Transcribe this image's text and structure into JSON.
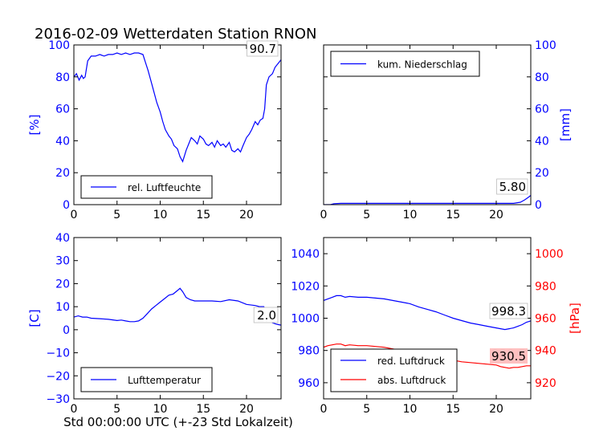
{
  "title": "2016-02-09 Wetterdaten Station RNON",
  "xlabel": "Std 00:00:00 UTC (+-23 Std Lokalzeit)",
  "colors": {
    "primary": "#0000ff",
    "secondary": "#ff0000",
    "axis": "#000000",
    "label_bg": "#ffc0c0"
  },
  "chart_data": [
    {
      "type": "line",
      "name": "humidity",
      "xlim": [
        0,
        24
      ],
      "xticks": [
        0,
        5,
        10,
        15,
        20
      ],
      "ylim": [
        0,
        100
      ],
      "yticks": [
        0,
        20,
        40,
        60,
        80,
        100
      ],
      "ylabel": "[%]",
      "yaxis_side": "left",
      "legend": {
        "placement": "lower-left",
        "entries": [
          {
            "label": "rel. Luftfeuchte",
            "color": "#0000ff"
          }
        ]
      },
      "value_label": {
        "text": "90.7",
        "highlight": false
      },
      "series": [
        {
          "name": "rel. Luftfeuchte",
          "color": "#0000ff",
          "x": [
            0,
            0.3,
            0.6,
            0.9,
            1.1,
            1.3,
            1.6,
            2,
            2.5,
            3,
            3.5,
            4,
            4.5,
            5,
            5.5,
            6,
            6.5,
            7,
            7.5,
            8,
            8.3,
            8.6,
            9,
            9.3,
            9.6,
            10,
            10.3,
            10.6,
            11,
            11.3,
            11.6,
            12,
            12.3,
            12.6,
            13,
            13.3,
            13.6,
            14,
            14.3,
            14.6,
            15,
            15.3,
            15.6,
            16,
            16.3,
            16.6,
            17,
            17.3,
            17.6,
            18,
            18.3,
            18.6,
            19,
            19.3,
            19.6,
            20,
            20.3,
            20.6,
            21,
            21.3,
            21.6,
            21.9,
            22.1,
            22.3,
            22.6,
            23,
            23.3,
            23.6,
            24
          ],
          "y": [
            80,
            82,
            78,
            81,
            79,
            80,
            90,
            93,
            93,
            94,
            93,
            94,
            94,
            95,
            94,
            95,
            94,
            95,
            95,
            94,
            89,
            84,
            76,
            70,
            64,
            58,
            52,
            47,
            43,
            41,
            37,
            35,
            30,
            27,
            34,
            38,
            42,
            40,
            38,
            43,
            41,
            38,
            37,
            39,
            36,
            40,
            37,
            38,
            36,
            39,
            34,
            33,
            35,
            33,
            37,
            42,
            44,
            47,
            52,
            50,
            53,
            54,
            60,
            75,
            80,
            82,
            86,
            88,
            90.7
          ]
        }
      ]
    },
    {
      "type": "line",
      "name": "precipitation",
      "xlim": [
        0,
        24
      ],
      "xticks": [
        0,
        5,
        10,
        15,
        20
      ],
      "ylim": [
        0,
        100
      ],
      "yticks": [
        0,
        20,
        40,
        60,
        80,
        100
      ],
      "ylabel": "[mm]",
      "yaxis_side": "right",
      "legend": {
        "placement": "upper-left",
        "entries": [
          {
            "label": "kum. Niederschlag",
            "color": "#0000ff"
          }
        ]
      },
      "value_label": {
        "text": "5.80",
        "highlight": false
      },
      "series": [
        {
          "name": "kum. Niederschlag",
          "color": "#0000ff",
          "x": [
            0,
            0.8,
            1.2,
            2,
            5,
            10,
            15,
            20,
            22,
            22.8,
            23.3,
            23.7,
            24
          ],
          "y": [
            0,
            0,
            0.6,
            0.8,
            0.8,
            0.8,
            0.8,
            0.8,
            0.8,
            1.5,
            3,
            4.5,
            5.8
          ]
        }
      ]
    },
    {
      "type": "line",
      "name": "temperature",
      "xlim": [
        0,
        24
      ],
      "xticks": [
        0,
        5,
        10,
        15,
        20
      ],
      "ylim": [
        -30,
        40
      ],
      "yticks": [
        -30,
        -20,
        -10,
        0,
        10,
        20,
        30,
        40
      ],
      "ylabel": "[C]",
      "yaxis_side": "left",
      "legend": {
        "placement": "lower-left",
        "entries": [
          {
            "label": "Lufttemperatur",
            "color": "#0000ff"
          }
        ]
      },
      "value_label": {
        "text": "2.0",
        "highlight": false
      },
      "series": [
        {
          "name": "Lufttemperatur",
          "color": "#0000ff",
          "x": [
            0,
            0.5,
            1,
            1.5,
            2,
            3,
            4,
            5,
            5.5,
            6,
            6.5,
            7,
            7.5,
            8,
            8.5,
            9,
            9.5,
            10,
            10.5,
            11,
            11.5,
            12,
            12.3,
            12.6,
            13,
            13.5,
            14,
            15,
            16,
            17,
            18,
            19,
            20,
            21,
            21.5,
            22,
            22.3,
            22.6,
            23,
            23.4,
            23.7,
            24
          ],
          "y": [
            5.5,
            6,
            5.5,
            5.5,
            5,
            4.8,
            4.5,
            4,
            4.2,
            3.8,
            3.5,
            3.5,
            3.8,
            5,
            7,
            9,
            10.5,
            12,
            13.5,
            15,
            15.5,
            17,
            18,
            16.5,
            14,
            13,
            12.5,
            12.5,
            12.5,
            12.2,
            13,
            12.5,
            11,
            10.5,
            10,
            10,
            8,
            5,
            3,
            2.5,
            2.2,
            2.0
          ]
        }
      ]
    },
    {
      "type": "line",
      "name": "pressure",
      "xlim": [
        0,
        24
      ],
      "xticks": [
        0,
        5,
        10,
        15,
        20
      ],
      "ylim": [
        950,
        1050
      ],
      "yticks": [
        960,
        980,
        1000,
        1020,
        1040
      ],
      "ylabel": "",
      "ylim_right": [
        910,
        1010
      ],
      "yticks_right": [
        920,
        940,
        960,
        980,
        1000
      ],
      "ylabel_right": "[hPa]",
      "legend": {
        "placement": "lower-left",
        "entries": [
          {
            "label": "red. Luftdruck",
            "color": "#0000ff"
          },
          {
            "label": "abs. Luftdruck",
            "color": "#ff0000"
          }
        ]
      },
      "value_label": {
        "text": "998.3",
        "highlight": false
      },
      "value_label_right": {
        "text": "930.5",
        "highlight": true
      },
      "series": [
        {
          "name": "red. Luftdruck",
          "color": "#0000ff",
          "axis": "left",
          "x": [
            0,
            0.5,
            1,
            1.5,
            2,
            2.5,
            3,
            4,
            5,
            6,
            7,
            8,
            9,
            10,
            11,
            12,
            13,
            14,
            15,
            16,
            17,
            18,
            19,
            20,
            20.5,
            21,
            21.5,
            22,
            22.5,
            23,
            23.5,
            24
          ],
          "y": [
            1011,
            1012,
            1013,
            1014,
            1014,
            1013,
            1013.5,
            1013,
            1013,
            1012.5,
            1012,
            1011,
            1010,
            1009,
            1007,
            1005.5,
            1004,
            1002,
            1000,
            998.5,
            997,
            996,
            995,
            994,
            993.5,
            993,
            993.5,
            994,
            995,
            996,
            997.5,
            998.3
          ]
        },
        {
          "name": "abs. Luftdruck",
          "color": "#ff0000",
          "axis": "right",
          "x": [
            0,
            0.5,
            1,
            1.5,
            2,
            2.5,
            3,
            4,
            5,
            6,
            7,
            8,
            9,
            10,
            11,
            12,
            13,
            14,
            15,
            16,
            17,
            18,
            19,
            20,
            20.5,
            21,
            21.5,
            22,
            22.5,
            23,
            23.5,
            24
          ],
          "y": [
            942,
            943,
            943.5,
            944,
            944,
            943,
            943.5,
            943,
            943,
            942.5,
            942,
            941,
            940,
            939.5,
            938.5,
            937,
            936,
            935,
            934,
            933,
            932.5,
            932,
            931.5,
            931,
            930,
            929.5,
            929,
            929.5,
            929.5,
            930,
            930.5,
            930.5
          ]
        }
      ]
    }
  ]
}
